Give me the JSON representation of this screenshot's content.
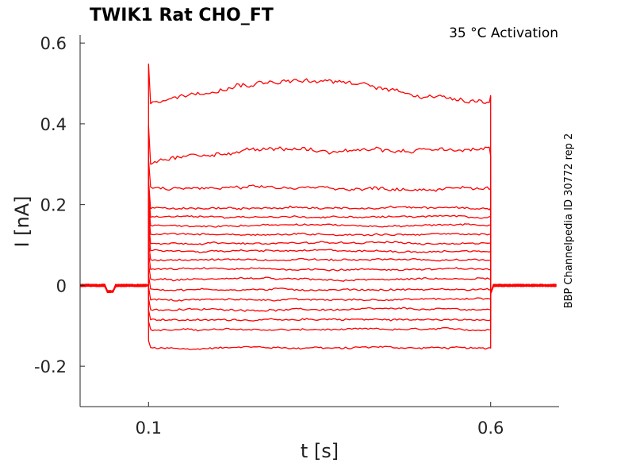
{
  "chart_data": {
    "type": "line",
    "title": "TWIK1  Rat  CHO_FT",
    "subtitle": "35 °C  Activation",
    "side_label": "BBP Channelpedia ID 30772 rep 2",
    "xlabel": "t [s]",
    "ylabel": "I [nA]",
    "xlim": [
      0.0,
      0.7
    ],
    "ylim": [
      -0.3,
      0.62
    ],
    "xticks": [
      0.1,
      0.6
    ],
    "xtick_labels": [
      "0.1",
      "0.6"
    ],
    "yticks": [
      -0.2,
      0,
      0.2,
      0.4,
      0.6
    ],
    "ytick_labels": [
      "-0.2",
      "0",
      "0.2",
      "0.4",
      "0.6"
    ],
    "pulse_start": 0.1,
    "pulse_end": 0.6,
    "baseline": 0.0,
    "color": "#ff0000",
    "series_levels": [
      -0.155,
      -0.11,
      -0.085,
      -0.06,
      -0.035,
      -0.01,
      0.015,
      0.04,
      0.063,
      0.085,
      0.105,
      0.127,
      0.148,
      0.17,
      0.192,
      0.24,
      0.32,
      0.47
    ]
  }
}
